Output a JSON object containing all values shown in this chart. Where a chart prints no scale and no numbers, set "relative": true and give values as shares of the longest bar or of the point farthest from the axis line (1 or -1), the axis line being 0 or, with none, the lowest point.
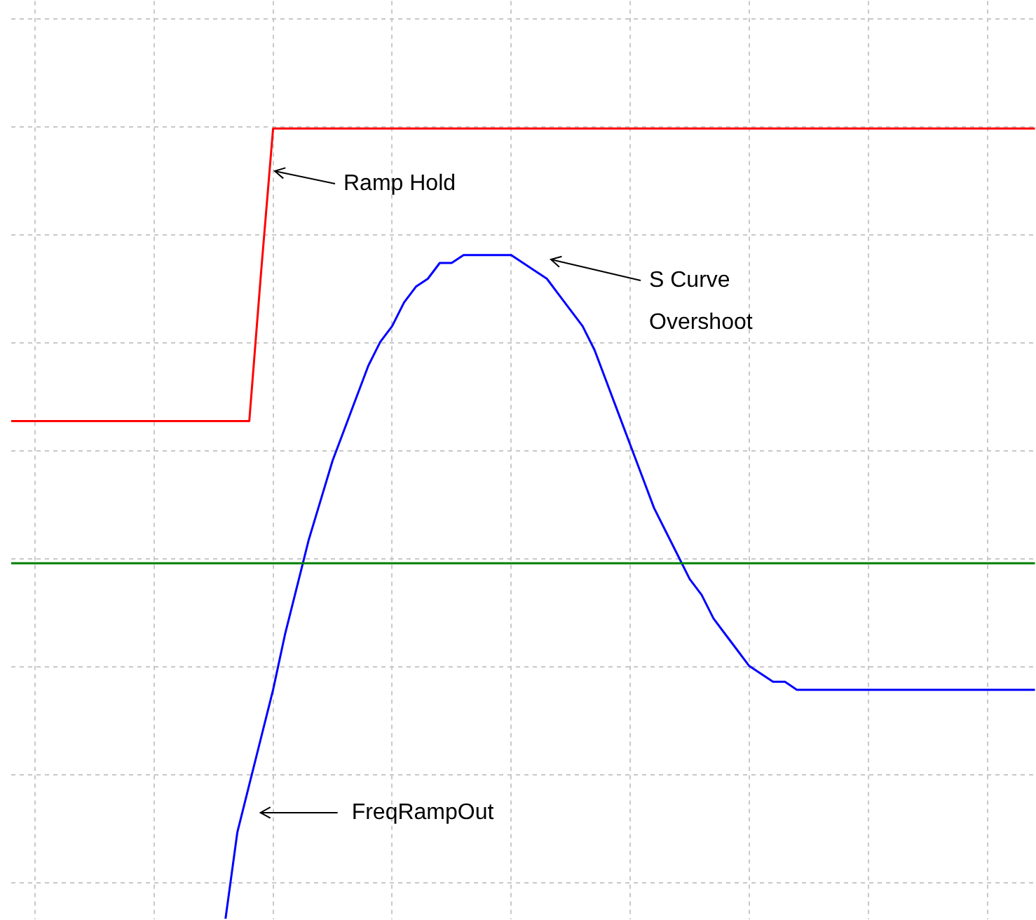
{
  "chart_data": {
    "type": "line",
    "relative": true,
    "grid": true,
    "legend": false,
    "marker": "none",
    "line_style": "solid",
    "categories": [
      null,
      null,
      null,
      null,
      null,
      null,
      null,
      null,
      null,
      null,
      null,
      null,
      null,
      null,
      null,
      null,
      null,
      null,
      null,
      null,
      null,
      null,
      null,
      null,
      null,
      null,
      null,
      null,
      null,
      null,
      null,
      null,
      null,
      null,
      null,
      null,
      null,
      null,
      null,
      null,
      null,
      null,
      null,
      null,
      null,
      null,
      null,
      null,
      null,
      null,
      null,
      null,
      null,
      null,
      null,
      null,
      null,
      null,
      null,
      null,
      null,
      null,
      null,
      null,
      null,
      null,
      null,
      null,
      null,
      null,
      null,
      null,
      null,
      null,
      null,
      null,
      null,
      null,
      null,
      null,
      null,
      null,
      null,
      null,
      null,
      null,
      null
    ],
    "series": [
      {
        "color": "#ff0000",
        "values": [
          0.63,
          0.63,
          0.63,
          0.63,
          0.63,
          0.63,
          0.63,
          0.63,
          0.63,
          0.63,
          0.63,
          0.63,
          0.63,
          0.63,
          0.63,
          0.63,
          0.63,
          0.63,
          0.63,
          0.63,
          0.63,
          0.82,
          1,
          1,
          1,
          1,
          1,
          1,
          1,
          1,
          1,
          1,
          1,
          1,
          1,
          1,
          1,
          1,
          1,
          1,
          1,
          1,
          1,
          1,
          1,
          1,
          1,
          1,
          1,
          1,
          1,
          1,
          1,
          1,
          1,
          1,
          1,
          1,
          1,
          1,
          1,
          1,
          1,
          1,
          1,
          1,
          1,
          1,
          1,
          1,
          1,
          1,
          1,
          1,
          1,
          1,
          1,
          1,
          1,
          1,
          1,
          1,
          1,
          1,
          1,
          1,
          1
        ]
      },
      {
        "color": "#008000",
        "values": [
          0.45,
          0.45,
          0.45,
          0.45,
          0.45,
          0.45,
          0.45,
          0.45,
          0.45,
          0.45,
          0.45,
          0.45,
          0.45,
          0.45,
          0.45,
          0.45,
          0.45,
          0.45,
          0.45,
          0.45,
          0.45,
          0.45,
          0.45,
          0.45,
          0.45,
          0.45,
          0.45,
          0.45,
          0.45,
          0.45,
          0.45,
          0.45,
          0.45,
          0.45,
          0.45,
          0.45,
          0.45,
          0.45,
          0.45,
          0.45,
          0.45,
          0.45,
          0.45,
          0.45,
          0.45,
          0.45,
          0.45,
          0.45,
          0.45,
          0.45,
          0.45,
          0.45,
          0.45,
          0.45,
          0.45,
          0.45,
          0.45,
          0.45,
          0.45,
          0.45,
          0.45,
          0.45,
          0.45,
          0.45,
          0.45,
          0.45,
          0.45,
          0.45,
          0.45,
          0.45,
          0.45,
          0.45,
          0.45,
          0.45,
          0.45,
          0.45,
          0.45,
          0.45,
          0.45,
          0.45,
          0.45,
          0.45,
          0.45,
          0.45,
          0.45,
          0.45,
          0.45
        ]
      },
      {
        "name": "FreqRampOut",
        "color": "#0000ff",
        "values": [
          null,
          null,
          null,
          null,
          null,
          null,
          null,
          null,
          null,
          null,
          null,
          null,
          null,
          null,
          null,
          null,
          null,
          null,
          0,
          0.11,
          0.17,
          0.23,
          0.29,
          0.36,
          0.42,
          0.48,
          0.53,
          0.58,
          0.62,
          0.66,
          0.7,
          0.73,
          0.75,
          0.78,
          0.8,
          0.81,
          0.83,
          0.83,
          0.84,
          0.84,
          0.84,
          0.84,
          0.84,
          0.83,
          0.82,
          0.81,
          0.79,
          0.77,
          0.75,
          0.72,
          0.68,
          0.64,
          0.6,
          0.56,
          0.52,
          0.49,
          0.46,
          0.43,
          0.41,
          0.38,
          0.36,
          0.34,
          0.32,
          0.31,
          0.3,
          0.3,
          0.29,
          0.29,
          0.29,
          0.29,
          0.29,
          0.29,
          0.29,
          0.29,
          0.29,
          0.29,
          0.29,
          0.29,
          0.29,
          0.29,
          0.29,
          0.29,
          0.29,
          0.29,
          0.29,
          0.29,
          0.29
        ]
      }
    ],
    "annotations": [
      "Ramp Hold",
      "S Curve Overshoot"
    ]
  }
}
